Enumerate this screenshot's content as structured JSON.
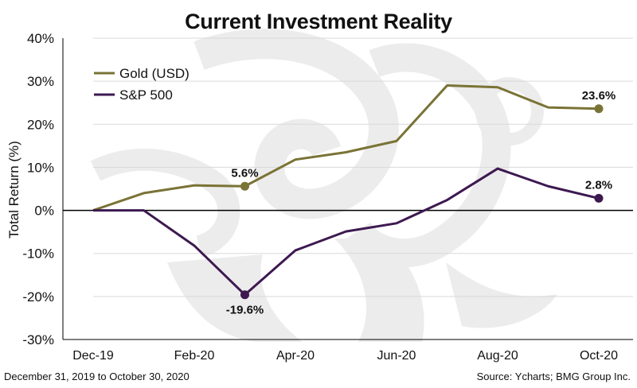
{
  "chart_data": {
    "type": "line",
    "title": "Current Investment Reality",
    "ylabel": "Total Return (%)",
    "xlabel": "",
    "ylim": [
      -30,
      40
    ],
    "y_ticks": [
      "40%",
      "30%",
      "20%",
      "10%",
      "0%",
      "-10%",
      "-20%",
      "-30%"
    ],
    "y_tick_values": [
      40,
      30,
      20,
      10,
      0,
      -10,
      -20,
      -30
    ],
    "x_tick_labels": [
      "Dec-19",
      "Feb-20",
      "Apr-20",
      "Jun-20",
      "Aug-20",
      "Oct-20"
    ],
    "x": [
      "Dec-19",
      "Jan-20",
      "Feb-20",
      "Mar-20",
      "Apr-20",
      "May-20",
      "Jun-20",
      "Jul-20",
      "Aug-20",
      "Sep-20",
      "Oct-20"
    ],
    "grid": true,
    "legend_position": "top-left",
    "series": [
      {
        "name": "Gold (USD)",
        "color": "#7a7336",
        "values": [
          0,
          4.0,
          5.8,
          5.6,
          11.8,
          13.5,
          16.1,
          29.0,
          28.6,
          23.9,
          23.6
        ]
      },
      {
        "name": "S&P 500",
        "color": "#3d1950",
        "values": [
          0,
          0,
          -8.2,
          -19.6,
          -9.3,
          -4.9,
          -3.0,
          2.4,
          9.7,
          5.6,
          2.8
        ]
      }
    ],
    "annotations": [
      {
        "series": 0,
        "index": 3,
        "text": "5.6%",
        "pos": "above"
      },
      {
        "series": 0,
        "index": 10,
        "text": "23.6%",
        "pos": "above"
      },
      {
        "series": 1,
        "index": 3,
        "text": "-19.6%",
        "pos": "below"
      },
      {
        "series": 1,
        "index": 10,
        "text": "2.8%",
        "pos": "above"
      }
    ]
  },
  "footnotes": {
    "left": "December 31, 2019 to October 30, 2020",
    "right": "Source: Ycharts; BMG Group Inc."
  },
  "colors": {
    "watermark": "#ececec",
    "grid": "#d9d9d9",
    "axis": "#000000"
  }
}
